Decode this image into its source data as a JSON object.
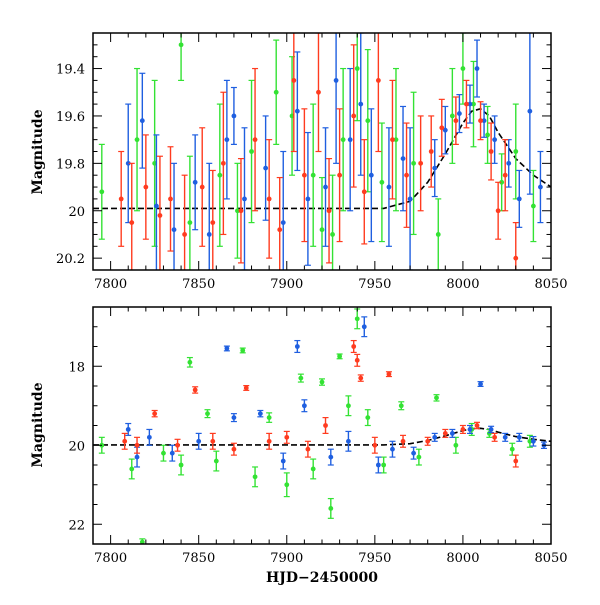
{
  "colors": {
    "blue": "#1f5fe0",
    "green": "#33e233",
    "red": "#ff3b1f",
    "model": "#000000"
  },
  "chart_data": [
    {
      "type": "scatter",
      "panel": "top",
      "title": "",
      "xlabel": "",
      "ylabel": "Magnitude",
      "xlim": [
        7790,
        8050
      ],
      "ylim": [
        20.25,
        19.25
      ],
      "y_inverted": true,
      "grid": false,
      "xticks": [
        "7800",
        "7850",
        "7900",
        "7950",
        "8000",
        "8050"
      ],
      "yticks": [
        "19.4",
        "19.6",
        "19.8",
        "20",
        "20.2"
      ],
      "model_curve": {
        "x": [
          7790,
          7955,
          7970,
          7980,
          7990,
          8000,
          8005,
          8010,
          8015,
          8020,
          8030,
          8040,
          8050
        ],
        "y": [
          19.99,
          19.99,
          19.96,
          19.88,
          19.76,
          19.63,
          19.58,
          19.57,
          19.6,
          19.67,
          19.78,
          19.85,
          19.9
        ]
      },
      "series": [
        {
          "color": "blue",
          "points": [
            [
              7810,
              19.8,
              0.25
            ],
            [
              7818,
              19.62,
              0.2
            ],
            [
              7826,
              19.98,
              0.3
            ],
            [
              7836,
              20.08,
              0.28
            ],
            [
              7848,
              19.88,
              0.2
            ],
            [
              7856,
              20.1,
              0.3
            ],
            [
              7866,
              19.7,
              0.25
            ],
            [
              7870,
              19.6,
              0.12
            ],
            [
              7876,
              19.95,
              0.3
            ],
            [
              7888,
              19.82,
              0.22
            ],
            [
              7898,
              20.05,
              0.3
            ],
            [
              7906,
              19.58,
              0.25
            ],
            [
              7912,
              19.95,
              0.28
            ],
            [
              7922,
              19.9,
              0.25
            ],
            [
              7928,
              19.45,
              0.35
            ],
            [
              7936,
              19.7,
              0.3
            ],
            [
              7942,
              19.55,
              0.3
            ],
            [
              7948,
              19.85,
              0.28
            ],
            [
              7958,
              19.9,
              0.25
            ],
            [
              7966,
              19.78,
              0.22
            ],
            [
              7970,
              19.95,
              0.3
            ],
            [
              7984,
              19.82,
              0.12
            ],
            [
              7990,
              19.66,
              0.1
            ],
            [
              7998,
              19.59,
              0.08
            ],
            [
              8004,
              19.55,
              0.08
            ],
            [
              8008,
              19.4,
              0.12
            ],
            [
              8012,
              19.62,
              0.07
            ],
            [
              8018,
              19.7,
              0.1
            ],
            [
              8026,
              19.8,
              0.1
            ],
            [
              8032,
              19.95,
              0.12
            ],
            [
              8038,
              19.58,
              0.35
            ],
            [
              8044,
              19.9,
              0.15
            ]
          ]
        },
        {
          "color": "green",
          "points": [
            [
              7795,
              19.92,
              0.2
            ],
            [
              7815,
              19.7,
              0.3
            ],
            [
              7825,
              19.8,
              0.35
            ],
            [
              7840,
              19.3,
              0.15
            ],
            [
              7845,
              20.05,
              0.28
            ],
            [
              7862,
              19.85,
              0.3
            ],
            [
              7872,
              20.0,
              0.2
            ],
            [
              7880,
              19.75,
              0.3
            ],
            [
              7894,
              19.5,
              0.22
            ],
            [
              7903,
              19.6,
              0.25
            ],
            [
              7915,
              19.85,
              0.3
            ],
            [
              7920,
              20.08,
              0.22
            ],
            [
              7926,
              20.1,
              0.25
            ],
            [
              7932,
              19.7,
              0.3
            ],
            [
              7940,
              19.4,
              0.22
            ],
            [
              7946,
              19.62,
              0.3
            ],
            [
              7954,
              19.88,
              0.25
            ],
            [
              7962,
              19.7,
              0.3
            ],
            [
              7972,
              19.8,
              0.3
            ],
            [
              7986,
              20.1,
              0.15
            ],
            [
              7994,
              19.6,
              0.2
            ],
            [
              8000,
              19.4,
              0.15
            ],
            [
              8006,
              19.55,
              0.18
            ],
            [
              8014,
              19.68,
              0.12
            ],
            [
              8022,
              19.88,
              0.12
            ],
            [
              8030,
              19.75,
              0.2
            ],
            [
              8040,
              19.98,
              0.15
            ]
          ]
        },
        {
          "color": "red",
          "points": [
            [
              7806,
              19.95,
              0.2
            ],
            [
              7812,
              20.05,
              0.25
            ],
            [
              7820,
              19.9,
              0.22
            ],
            [
              7828,
              20.02,
              0.25
            ],
            [
              7834,
              19.95,
              0.22
            ],
            [
              7842,
              20.1,
              0.25
            ],
            [
              7852,
              19.9,
              0.25
            ],
            [
              7858,
              20.05,
              0.22
            ],
            [
              7864,
              19.8,
              0.3
            ],
            [
              7874,
              20.0,
              0.22
            ],
            [
              7882,
              19.7,
              0.3
            ],
            [
              7890,
              19.95,
              0.25
            ],
            [
              7896,
              20.08,
              0.22
            ],
            [
              7904,
              19.45,
              0.3
            ],
            [
              7910,
              19.85,
              0.28
            ],
            [
              7918,
              19.5,
              0.25
            ],
            [
              7924,
              20.0,
              0.22
            ],
            [
              7930,
              19.85,
              0.28
            ],
            [
              7938,
              19.6,
              0.3
            ],
            [
              7944,
              19.92,
              0.22
            ],
            [
              7952,
              19.45,
              0.3
            ],
            [
              7960,
              19.7,
              0.25
            ],
            [
              7968,
              19.85,
              0.22
            ],
            [
              7976,
              19.8,
              0.2
            ],
            [
              7982,
              19.75,
              0.15
            ],
            [
              7988,
              19.65,
              0.12
            ],
            [
              7996,
              19.62,
              0.1
            ],
            [
              8002,
              19.55,
              0.1
            ],
            [
              8010,
              19.62,
              0.08
            ],
            [
              8016,
              19.75,
              0.12
            ],
            [
              8020,
              20.0,
              0.12
            ],
            [
              8024,
              19.85,
              0.15
            ],
            [
              8030,
              20.2,
              0.15
            ]
          ]
        }
      ]
    },
    {
      "type": "scatter",
      "panel": "bottom",
      "title": "",
      "xlabel": "HJD−2450000",
      "ylabel": "Magnitude",
      "xlim": [
        7790,
        8050
      ],
      "ylim": [
        22.5,
        16.5
      ],
      "y_inverted": true,
      "grid": false,
      "xticks": [
        "7800",
        "7850",
        "7900",
        "7950",
        "8000",
        "8050"
      ],
      "yticks": [
        "18",
        "20",
        "22"
      ],
      "model_curve": {
        "x": [
          7790,
          7955,
          7970,
          7980,
          7990,
          8000,
          8005,
          8010,
          8015,
          8020,
          8030,
          8040,
          8050
        ],
        "y": [
          19.99,
          19.99,
          19.96,
          19.88,
          19.76,
          19.63,
          19.58,
          19.57,
          19.6,
          19.67,
          19.78,
          19.85,
          19.9
        ]
      },
      "series": [
        {
          "color": "blue",
          "points": [
            [
              7810,
              19.6,
              0.15
            ],
            [
              7815,
              20.3,
              0.25
            ],
            [
              7822,
              19.8,
              0.2
            ],
            [
              7835,
              20.2,
              0.2
            ],
            [
              7850,
              19.9,
              0.2
            ],
            [
              7866,
              17.55,
              0.06
            ],
            [
              7870,
              19.3,
              0.1
            ],
            [
              7885,
              19.2,
              0.08
            ],
            [
              7898,
              20.4,
              0.2
            ],
            [
              7906,
              17.5,
              0.15
            ],
            [
              7910,
              19.0,
              0.15
            ],
            [
              7925,
              20.3,
              0.2
            ],
            [
              7935,
              19.9,
              0.25
            ],
            [
              7944,
              17.0,
              0.25
            ],
            [
              7952,
              20.5,
              0.2
            ],
            [
              7960,
              20.1,
              0.2
            ],
            [
              7972,
              20.2,
              0.15
            ],
            [
              7984,
              19.8,
              0.1
            ],
            [
              7994,
              19.7,
              0.1
            ],
            [
              8004,
              19.6,
              0.1
            ],
            [
              8010,
              18.45,
              0.06
            ],
            [
              8016,
              19.6,
              0.08
            ],
            [
              8024,
              19.8,
              0.1
            ],
            [
              8032,
              19.8,
              0.1
            ],
            [
              8040,
              19.9,
              0.12
            ],
            [
              8046,
              20.0,
              0.08
            ]
          ]
        },
        {
          "color": "green",
          "points": [
            [
              7795,
              20.0,
              0.2
            ],
            [
              7812,
              20.6,
              0.25
            ],
            [
              7818,
              22.45,
              0.08
            ],
            [
              7830,
              20.2,
              0.2
            ],
            [
              7840,
              20.5,
              0.25
            ],
            [
              7845,
              17.9,
              0.12
            ],
            [
              7855,
              19.2,
              0.1
            ],
            [
              7860,
              20.4,
              0.25
            ],
            [
              7875,
              17.6,
              0.06
            ],
            [
              7882,
              20.8,
              0.25
            ],
            [
              7890,
              19.3,
              0.12
            ],
            [
              7900,
              21.0,
              0.3
            ],
            [
              7908,
              18.3,
              0.1
            ],
            [
              7915,
              20.6,
              0.25
            ],
            [
              7920,
              18.4,
              0.08
            ],
            [
              7925,
              21.6,
              0.25
            ],
            [
              7930,
              17.75,
              0.06
            ],
            [
              7935,
              19.0,
              0.25
            ],
            [
              7940,
              16.8,
              0.25
            ],
            [
              7946,
              19.3,
              0.2
            ],
            [
              7955,
              20.5,
              0.2
            ],
            [
              7965,
              19.0,
              0.1
            ],
            [
              7975,
              20.3,
              0.2
            ],
            [
              7985,
              18.8,
              0.08
            ],
            [
              7996,
              20.0,
              0.2
            ],
            [
              8005,
              19.6,
              0.15
            ],
            [
              8015,
              19.7,
              0.1
            ],
            [
              8028,
              20.1,
              0.15
            ],
            [
              8038,
              19.9,
              0.15
            ]
          ]
        },
        {
          "color": "red",
          "points": [
            [
              7808,
              19.9,
              0.2
            ],
            [
              7815,
              20.0,
              0.2
            ],
            [
              7825,
              19.2,
              0.08
            ],
            [
              7838,
              20.0,
              0.15
            ],
            [
              7848,
              18.6,
              0.08
            ],
            [
              7858,
              19.9,
              0.2
            ],
            [
              7870,
              20.1,
              0.15
            ],
            [
              7877,
              18.55,
              0.06
            ],
            [
              7890,
              19.9,
              0.2
            ],
            [
              7900,
              19.8,
              0.15
            ],
            [
              7912,
              20.1,
              0.2
            ],
            [
              7922,
              19.5,
              0.2
            ],
            [
              7938,
              17.5,
              0.15
            ],
            [
              7940,
              17.85,
              0.15
            ],
            [
              7942,
              18.3,
              0.08
            ],
            [
              7950,
              20.0,
              0.2
            ],
            [
              7958,
              18.2,
              0.06
            ],
            [
              7966,
              19.9,
              0.15
            ],
            [
              7980,
              19.9,
              0.1
            ],
            [
              7990,
              19.7,
              0.1
            ],
            [
              8000,
              19.6,
              0.1
            ],
            [
              8008,
              19.5,
              0.08
            ],
            [
              8018,
              19.8,
              0.1
            ],
            [
              8030,
              20.4,
              0.15
            ]
          ]
        }
      ]
    }
  ]
}
